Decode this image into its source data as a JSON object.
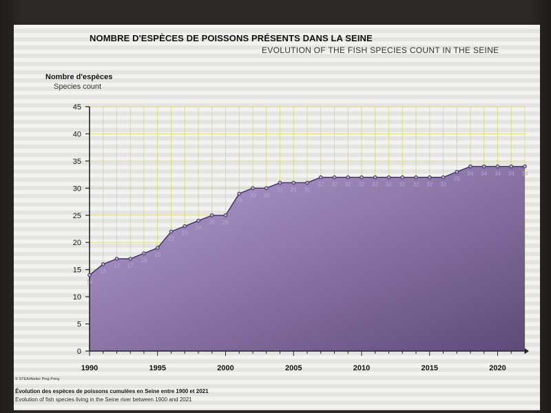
{
  "titles": {
    "fr": "NOMBRE D'ESPÈCES DE POISSONS PRÉSENTS DANS LA SEINE",
    "en": "EVOLUTION OF THE FISH SPECIES COUNT IN THE SEINE"
  },
  "axis": {
    "ylabel_fr": "Nombre d'espèces",
    "ylabel_en": "Species count"
  },
  "footer": {
    "credit": "© STEA/Atelier Ping-Pong",
    "caption_fr": "Évolution des espèces de poissons cumulées en Seine entre 1900 et 2021",
    "caption_en": "Evolution of fish species living in the Seine river between 1900 and 2021"
  },
  "colors": {
    "fill_top": "#b6a0d4",
    "fill_bottom": "#5e4a78",
    "line": "#3a2f5a",
    "grid": "#d8d86a",
    "label": "#b9a9d1"
  },
  "chart_data": {
    "type": "area",
    "x": [
      1990,
      1991,
      1992,
      1993,
      1994,
      1995,
      1996,
      1997,
      1998,
      1999,
      2000,
      2001,
      2002,
      2003,
      2004,
      2005,
      2006,
      2007,
      2008,
      2009,
      2010,
      2011,
      2012,
      2013,
      2014,
      2015,
      2016,
      2017,
      2018,
      2019,
      2020,
      2021,
      2022
    ],
    "values": [
      14,
      16,
      17,
      17,
      18,
      19,
      22,
      23,
      24,
      25,
      25,
      29,
      30,
      30,
      31,
      31,
      31,
      32,
      32,
      32,
      32,
      32,
      32,
      32,
      32,
      32,
      32,
      33,
      34,
      34,
      34,
      34,
      34
    ],
    "data_labels": [
      "14",
      "16",
      "17",
      "17",
      "18",
      "19",
      "22",
      "23",
      "24",
      "25",
      "25",
      "29",
      "30",
      "30",
      "31",
      "31",
      "31",
      "32",
      "32",
      "32",
      "32",
      "32",
      "32",
      "32",
      "32",
      "32",
      "32",
      "33",
      "34",
      "34",
      "34",
      "34",
      "34"
    ],
    "xticks": [
      1990,
      1995,
      2000,
      2005,
      2010,
      2015,
      2020
    ],
    "xtick_labels": [
      "1990",
      "1995",
      "2000",
      "2005",
      "2010",
      "2015",
      "2020"
    ],
    "yticks": [
      0,
      5,
      10,
      15,
      20,
      25,
      30,
      35,
      40,
      45
    ],
    "ytick_labels": [
      "0",
      "5",
      "10",
      "15",
      "20",
      "25",
      "30",
      "35",
      "40",
      "45"
    ],
    "xlim": [
      1990,
      2022
    ],
    "ylim": [
      0,
      45
    ],
    "grid": true,
    "legend": "none"
  }
}
